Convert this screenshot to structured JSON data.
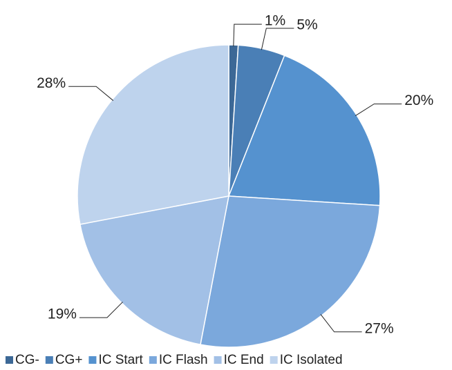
{
  "chart_data": {
    "type": "pie",
    "categories": [
      "CG-",
      "CG+",
      "IC Start",
      "IC Flash",
      "IC End",
      "IC Isolated"
    ],
    "values": [
      1,
      5,
      20,
      27,
      19,
      28
    ],
    "value_labels": [
      "1%",
      "5%",
      "20%",
      "27%",
      "19%",
      "28%"
    ],
    "colors": [
      "#3c6896",
      "#4a7fb6",
      "#5592cf",
      "#7ba8dc",
      "#a2c0e6",
      "#bed3ed"
    ],
    "legend": "bottom"
  }
}
